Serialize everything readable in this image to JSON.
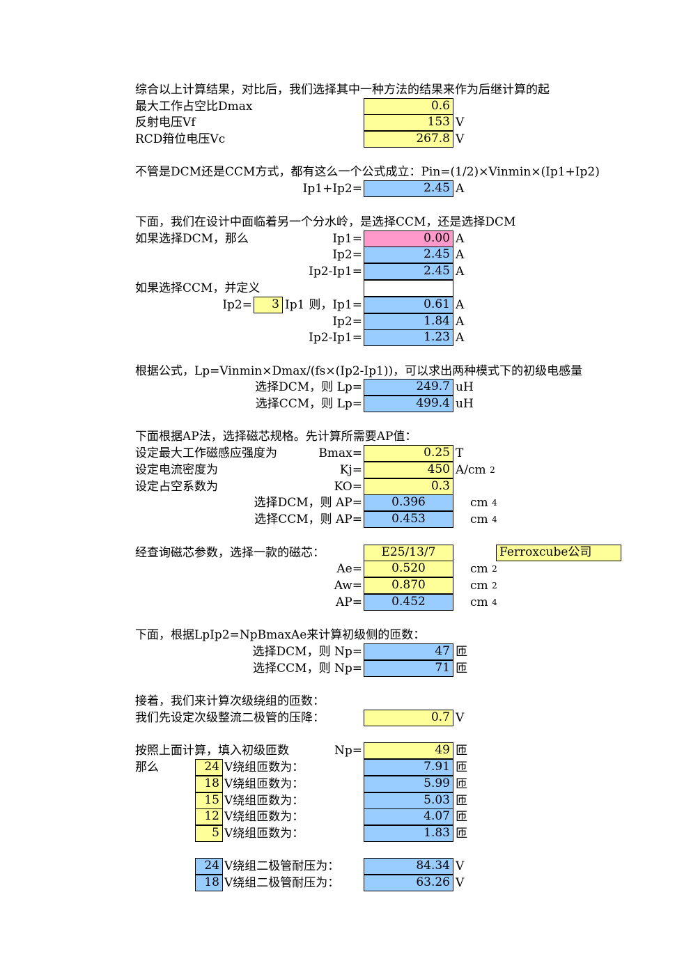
{
  "intro": {
    "line": "综合以上计算结果，对比后，我们选择其中一种方法的结果来作为后继计算的起",
    "dmax_label": "最大工作占空比Dmax",
    "dmax": "0.6",
    "vf_label": "反射电压Vf",
    "vf": "153",
    "vf_unit": "V",
    "vc_label": "RCD箝位电压Vc",
    "vc": "267.8",
    "vc_unit": "V"
  },
  "pin": {
    "line": "不管是DCM还是CCM方式，都有这么一个公式成立：Pin=(1/2)×Vinmin×(Ip1+Ip2)",
    "sum_label": "Ip1+Ip2=",
    "sum": "2.45",
    "unit": "A"
  },
  "mode": {
    "line": "下面，我们在设计中面临着另一个分水岭，是选择CCM，还是选择DCM",
    "dcm_label": "如果选择DCM，那么",
    "dcm_ip1_label": "Ip1=",
    "dcm_ip1": "0.00",
    "dcm_ip2_label": "Ip2=",
    "dcm_ip2": "2.45",
    "dcm_diff_label": "Ip2-Ip1=",
    "dcm_diff": "2.45",
    "ccm_label": "如果选择CCM，并定义",
    "ccm_ip2_eq": "Ip2=",
    "ccm_ratio": "3",
    "ccm_ip1_text": "Ip1",
    "ccm_ip1_label": "则，Ip1=",
    "ccm_ip1": "0.61",
    "ccm_ip2_label": "Ip2=",
    "ccm_ip2": "1.84",
    "ccm_diff_label": "Ip2-Ip1=",
    "ccm_diff": "1.23",
    "unit": "A"
  },
  "lp": {
    "line": "根据公式，Lp=Vinmin×Dmax/(fs×(Ip2-Ip1))，可以求出两种模式下的初级电感量",
    "dcm_label": "选择DCM，则 Lp=",
    "dcm": "249.7",
    "ccm_label": "选择CCM，则 Lp=",
    "ccm": "499.4",
    "unit": "uH"
  },
  "ap": {
    "line": "下面根据AP法，选择磁芯规格。先计算所需要AP值：",
    "bmax_text": "设定最大工作磁感应强度为",
    "bmax_label": "Bmax=",
    "bmax": "0.25",
    "bmax_unit": "T",
    "kj_text": "设定电流密度为",
    "kj_label": "Kj=",
    "kj": "450",
    "kj_unit": "A/cm",
    "kj_sup": "2",
    "k0_text": "设定占空系数为",
    "k0_label": "KO=",
    "k0": "0.3",
    "dcm_label": "选择DCM，则 AP=",
    "dcm": "0.396",
    "ccm_label": "选择CCM，则 AP=",
    "ccm": "0.453",
    "ap_unit": "cm",
    "ap_sup": "4"
  },
  "core": {
    "line": "经查询磁芯参数，选择一款的磁芯：",
    "model": "E25/13/7",
    "vendor": "Ferroxcube公司",
    "ae_label": "Ae=",
    "ae": "0.520",
    "ae_unit": "cm",
    "ae_sup": "2",
    "aw_label": "Aw=",
    "aw": "0.870",
    "aw_unit": "cm",
    "aw_sup": "2",
    "ap_label": "AP=",
    "ap": "0.452",
    "ap_unit": "cm",
    "ap_sup": "4"
  },
  "np": {
    "line": "下面，根据LpIp2=NpBmaxAe来计算初级侧的匝数：",
    "dcm_label": "选择DCM，则 Np=",
    "dcm": "47",
    "ccm_label": "选择CCM，则 Np=",
    "ccm": "71",
    "unit": "匝"
  },
  "secondary": {
    "line1": "接着，我们来计算次级绕组的匝数：",
    "line2": "我们先设定次级整流二极管的压降：",
    "vd": "0.7",
    "vd_unit": "V",
    "np_text": "按照上面计算，填入初级匝数",
    "np_label": "Np=",
    "np": "49",
    "unit": "匝",
    "then": "那么",
    "windings": [
      {
        "v": "24",
        "label": "V绕组匝数为：",
        "n": "7.91"
      },
      {
        "v": "18",
        "label": "V绕组匝数为：",
        "n": "5.99"
      },
      {
        "v": "15",
        "label": "V绕组匝数为：",
        "n": "5.03"
      },
      {
        "v": "12",
        "label": "V绕组匝数为：",
        "n": "4.07"
      },
      {
        "v": "5",
        "label": "V绕组匝数为：",
        "n": "1.83"
      }
    ],
    "diodes": [
      {
        "v": "24",
        "label": "V绕组二极管耐压为：",
        "vr": "84.34"
      },
      {
        "v": "18",
        "label": "V绕组二极管耐压为：",
        "vr": "63.26"
      }
    ],
    "diode_unit": "V"
  }
}
